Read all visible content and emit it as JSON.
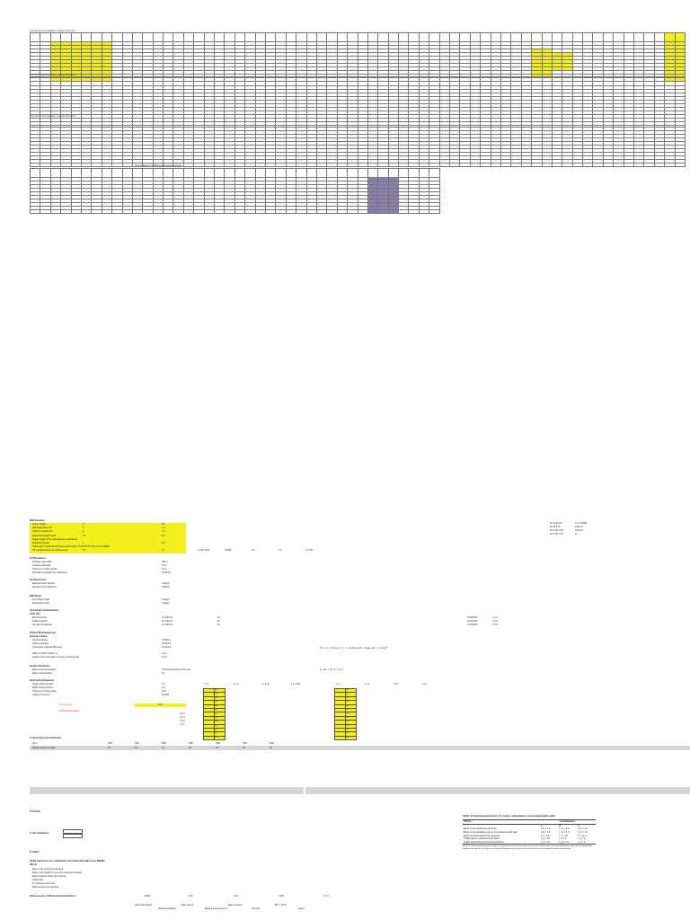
{
  "sheet": {
    "block1_title": "Line 40 and Line loadings x cycles/minimum 6",
    "block2_title": "Line 40 and Line loadings x cycles/minimum 6",
    "block3_title": "Line 40 and Line loadings x cycles/minimum 6",
    "block4_title": "Ground bearing modelling with design loadings"
  },
  "calc": {
    "heading1": "Wall Geometry",
    "row_labels": [
      "Design Height",
      "Wall depth above fill",
      "Depth of embedment",
      "Reinforced length Height",
      "Design height of the wall retaining embankment",
      "Reinforced length",
      "Trial length of reinforced fill (ratio of trial length / H at 0.7H) 5.18 m at 0.7H B3000",
      "FS calculated factor of reinforcement"
    ],
    "row_symbols": [
      "H",
      "h",
      "D",
      "H1",
      "",
      "L",
      "",
      "FS"
    ],
    "row_values": [
      "8.0",
      "1.0",
      "1.0",
      "9.0",
      "",
      "5.6",
      "",
      "1.4"
    ],
    "side_values": [
      "0.1357 kN/m",
      "0.0098",
      "0.0",
      "0.0",
      "17.9 kN"
    ],
    "right_col_a": [
      "Ka 0.297 0.5",
      "Kp 28.5 75",
      "Ka 0.297 0.64",
      "Ka 0.307 0.75"
    ],
    "right_col_b": [
      "0.7 6 0.8059",
      "0.95 0.0",
      "0.00 0.0",
      "21"
    ],
    "heading_soil": "Soil Parameters",
    "soil_labels": [
      "Drainage max width",
      "Coupling wall width",
      "Thickness of road materia",
      "Drainage of strength of embankment"
    ],
    "soil_values": [
      "295 m",
      "0.5 m",
      "0.5 m",
      "45 kN/m3"
    ],
    "heading_unit": "Soil Dimensions",
    "unit_labels": [
      "Measured from Section",
      "Measured from Reinforce"
    ],
    "unit_values": [
      "0 kg/m3",
      "0 kg/m3"
    ],
    "heading_angle": "Wall Slopes",
    "angle_labels": [
      "Front Slope Angle",
      "Back Slope Angle"
    ],
    "angle_values": [
      "0 deg/m",
      "0 deg/m"
    ],
    "heading_weights": "Unit weights (characteristic)",
    "sub_weights": "Earth Fills",
    "weight_labels": [
      "Reinforced soil",
      "Retained soil fill",
      "Founded fill material"
    ],
    "weight_values": [
      "19.4 kN/m3",
      "19.0 kN/m3",
      "19.4 kN/m3"
    ],
    "weight_phi": [
      "30",
      "30",
      "30"
    ],
    "weight_factors": [
      "0.3333333",
      "0.3333333",
      "0.3333333"
    ],
    "weight_red": [
      "0.333",
      "0.333",
      "0.333"
    ],
    "heading_loads": "Uniform Distributed Load",
    "sub_loads": "External Loading",
    "load_labels": [
      "Dead surcharge",
      "Traffic surcharge",
      "Construction ultimate Max axle"
    ],
    "load_values": [
      "0.5 kN/m",
      "10 kN/m2",
      "10 kN/m2"
    ],
    "load_extra": [
      "Width of friction Uplift in m",
      "Distance from wall edge to centre of bearing slab"
    ],
    "load_extra_values": [
      "0.0 m",
      "0.0 m"
    ],
    "heading_seismic": "Seismic Parameters",
    "seismic_labels": [
      "Mass of soil acceleration",
      "Mass of acceleration"
    ],
    "seismic_values": [
      "0.15 Seismic factor of the wall",
      "0.1"
    ],
    "heading_facing": "Input facing Parameters",
    "facing_labels": [
      "Height of facing panel",
      "Width of facing Panel",
      "Thickness of facing panel",
      "Grade of Concrete"
    ],
    "facing_values": [
      "1.5",
      "1.5",
      "0.18",
      "40 MPa"
    ],
    "facing_result_label": "FS calculated",
    "facing_result_value": "0.00",
    "red_labels": [
      "Working stress factor"
    ],
    "red_values": [
      "40.21",
      "40.21",
      "21.24",
      "1.18"
    ],
    "formula1": "K_a = cos²(φ) / [1 + √(sin(φ+δ) sin(φ−β) / cos δ)]²",
    "formula2": "K_ah = K_a cos δ",
    "mini_headers_a": [
      "K_h",
      "K_vs",
      "φ_d eff",
      "1.1 0.004"
    ],
    "mini_headers_b": [
      "K_h",
      "K_vs",
      "0.14",
      "0.14"
    ],
    "mini_rows_left": [
      "0.00",
      "0.55",
      "0.60",
      "0.62",
      "0.64",
      "0.65",
      "0.66",
      "0.67",
      "0.68",
      "0.70",
      "0.71",
      "0.72",
      "0.73"
    ],
    "mini_rows_right": [
      "0.00",
      "0.55",
      "0.60",
      "0.62",
      "0.64",
      "0.65",
      "0.66",
      "0.67",
      "0.68",
      "0.70",
      "0.71",
      "0.72",
      "0.73"
    ],
    "heading_external": "A. Surcharge Factor (External)",
    "ext_row1": [
      "Type",
      "FSB",
      "FSB",
      "FSB",
      "FSB",
      "FSB",
      "FSB",
      "FSB"
    ],
    "ext_row2": [
      "Design bearing strength",
      "90",
      "90",
      "90",
      "90",
      "90",
      "90",
      "90"
    ],
    "section_b": "B. Partials",
    "section_c": "C. Lift calculations",
    "section_d": "D. Safety",
    "heading_partial": "Partial load factors for combinations associated with walls as per BS8006",
    "heading_partial_sub": "Effects",
    "partial_rows": [
      "Mass of the reinforced soil block",
      "Mass of the backfill on top of the reinforced soil wall",
      "Earth pressure behind the structure",
      "Traffic load",
      "On reinforced soil block",
      "Behind reinforced soil block"
    ],
    "footer_label": "Earth pressure coefficient (horizontal factor)",
    "footer_values": [
      "0.0000",
      "0.01",
      "0.33",
      "0.000",
      "20.79"
    ],
    "footer_extra": [
      "Reinforced Height",
      "Reinforced Weight",
      "Base Area m",
      "Bearing pressure at toe",
      "Base pressure",
      "Strength",
      "BS 7 - BS 8",
      "Cases"
    ]
  },
  "ref_table": {
    "caption": "Table 11   Partial load factors for load combinations associated with walls",
    "col_effects": "Effects",
    "col_combinations": "Combinations",
    "combo_labels": [
      "A",
      "B",
      "C"
    ],
    "rows": [
      {
        "effect": "Mass of the reinforced soil body",
        "a": "f_fs = 1.5",
        "b": "f_fs = 1.0",
        "c": "f_fs = 1.0"
      },
      {
        "effect": "Mass of the backfill on top of the reinforced soil wall",
        "a": "f_fs = 1.5",
        "b": "f_fs = 1.0",
        "c": "f_fs = 1.0"
      },
      {
        "effect": "Earth pressure behind the structure",
        "a": "f_f = 1.5",
        "b": "f_f = 1.5",
        "c": "f_f = 1.0"
      },
      {
        "effect": "Traffic load on reinforced soil block",
        "a": "f_q = 1.5",
        "b": "f_q = 0",
        "c": "f_q = 0"
      },
      {
        "effect": "Traffic load behind reinforced soil block",
        "a": "f_q = 1.5",
        "b": "f_q = 1.5",
        "c": "f_q = 0"
      }
    ],
    "note": "NOTE   The following descriptions of load cases identify the more usual combinations for the various criteria. Inclusion for guidance only; all load combinations should be checked for each type of reinforced soil system and structure to ensure the most critical condition has been incorporated."
  },
  "colors": {
    "yellow": "#f2ef1c",
    "purple": "#8b7fb0",
    "grey": "#d6d6d6",
    "red": "#d42020"
  }
}
